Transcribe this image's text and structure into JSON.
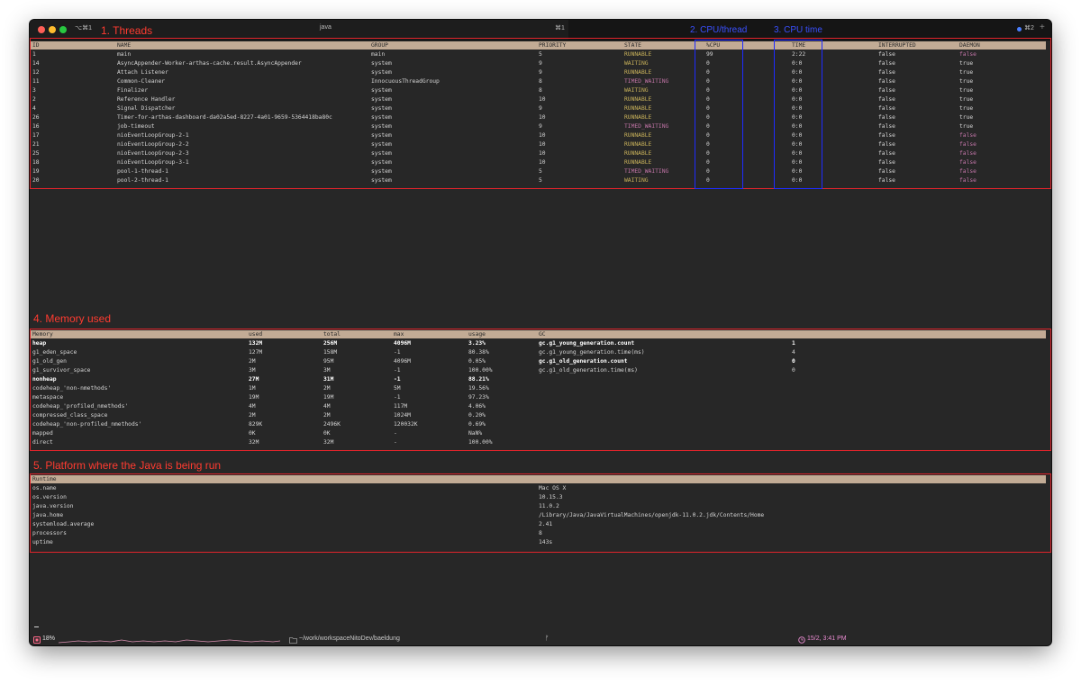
{
  "window": {
    "shortcut_left": "⌥⌘1",
    "tab_title": "java",
    "tab_shortcut": "⌘1",
    "shortcut_right": "⌘2",
    "plus": "+"
  },
  "annotations": {
    "threads": "1. Threads",
    "cpu_thread": "2. CPU/thread",
    "cpu_time": "3. CPU time",
    "memory": "4. Memory used",
    "platform": "5. Platform where the Java is being run"
  },
  "colors": {
    "annotation_red": "#ff3b30",
    "annotation_blue": "#3a50ff",
    "header_bar": "#c2ab95",
    "state_yellow": "#c9b25a",
    "state_magenta": "#c174a6"
  },
  "threads": {
    "headers": {
      "id": "ID",
      "name": "NAME",
      "group": "GROUP",
      "priority": "PRIORITY",
      "state": "STATE",
      "cpu": "%CPU",
      "time": "TIME",
      "interrupted": "INTERRUPTED",
      "daemon": "DAEMON"
    },
    "rows": [
      {
        "id": "1",
        "name": "main",
        "group": "main",
        "priority": "5",
        "state": "RUNNABLE",
        "state_color": "yellow",
        "cpu": "99",
        "time": "2:22",
        "interrupted": "false",
        "daemon": "false",
        "daemon_color": "magenta"
      },
      {
        "id": "14",
        "name": "AsyncAppender-Worker-arthas-cache.result.AsyncAppender",
        "group": "system",
        "priority": "9",
        "state": "WAITING",
        "state_color": "yellow",
        "cpu": "0",
        "time": "0:0",
        "interrupted": "false",
        "daemon": "true",
        "daemon_color": "plain"
      },
      {
        "id": "12",
        "name": "Attach Listener",
        "group": "system",
        "priority": "9",
        "state": "RUNNABLE",
        "state_color": "yellow",
        "cpu": "0",
        "time": "0:0",
        "interrupted": "false",
        "daemon": "true",
        "daemon_color": "plain"
      },
      {
        "id": "11",
        "name": "Common-Cleaner",
        "group": "InnocuousThreadGroup",
        "priority": "8",
        "state": "TIMED_WAITING",
        "state_color": "magenta",
        "cpu": "0",
        "time": "0:0",
        "interrupted": "false",
        "daemon": "true",
        "daemon_color": "plain"
      },
      {
        "id": "3",
        "name": "Finalizer",
        "group": "system",
        "priority": "8",
        "state": "WAITING",
        "state_color": "yellow",
        "cpu": "0",
        "time": "0:0",
        "interrupted": "false",
        "daemon": "true",
        "daemon_color": "plain"
      },
      {
        "id": "2",
        "name": "Reference Handler",
        "group": "system",
        "priority": "10",
        "state": "RUNNABLE",
        "state_color": "yellow",
        "cpu": "0",
        "time": "0:0",
        "interrupted": "false",
        "daemon": "true",
        "daemon_color": "plain"
      },
      {
        "id": "4",
        "name": "Signal Dispatcher",
        "group": "system",
        "priority": "9",
        "state": "RUNNABLE",
        "state_color": "yellow",
        "cpu": "0",
        "time": "0:0",
        "interrupted": "false",
        "daemon": "true",
        "daemon_color": "plain"
      },
      {
        "id": "26",
        "name": "Timer-for-arthas-dashboard-da02a5ed-8227-4a01-9659-5364418ba80c",
        "group": "system",
        "priority": "10",
        "state": "RUNNABLE",
        "state_color": "yellow",
        "cpu": "0",
        "time": "0:0",
        "interrupted": "false",
        "daemon": "true",
        "daemon_color": "plain"
      },
      {
        "id": "16",
        "name": "job-timeout",
        "group": "system",
        "priority": "9",
        "state": "TIMED_WAITING",
        "state_color": "magenta",
        "cpu": "0",
        "time": "0:0",
        "interrupted": "false",
        "daemon": "true",
        "daemon_color": "plain"
      },
      {
        "id": "17",
        "name": "nioEventLoopGroup-2-1",
        "group": "system",
        "priority": "10",
        "state": "RUNNABLE",
        "state_color": "yellow",
        "cpu": "0",
        "time": "0:0",
        "interrupted": "false",
        "daemon": "false",
        "daemon_color": "magenta"
      },
      {
        "id": "21",
        "name": "nioEventLoopGroup-2-2",
        "group": "system",
        "priority": "10",
        "state": "RUNNABLE",
        "state_color": "yellow",
        "cpu": "0",
        "time": "0:0",
        "interrupted": "false",
        "daemon": "false",
        "daemon_color": "magenta"
      },
      {
        "id": "25",
        "name": "nioEventLoopGroup-2-3",
        "group": "system",
        "priority": "10",
        "state": "RUNNABLE",
        "state_color": "yellow",
        "cpu": "0",
        "time": "0:0",
        "interrupted": "false",
        "daemon": "false",
        "daemon_color": "magenta"
      },
      {
        "id": "18",
        "name": "nioEventLoopGroup-3-1",
        "group": "system",
        "priority": "10",
        "state": "RUNNABLE",
        "state_color": "yellow",
        "cpu": "0",
        "time": "0:0",
        "interrupted": "false",
        "daemon": "false",
        "daemon_color": "magenta"
      },
      {
        "id": "19",
        "name": "pool-1-thread-1",
        "group": "system",
        "priority": "5",
        "state": "TIMED_WAITING",
        "state_color": "magenta",
        "cpu": "0",
        "time": "0:0",
        "interrupted": "false",
        "daemon": "false",
        "daemon_color": "magenta"
      },
      {
        "id": "20",
        "name": "pool-2-thread-1",
        "group": "system",
        "priority": "5",
        "state": "WAITING",
        "state_color": "yellow",
        "cpu": "0",
        "time": "0:0",
        "interrupted": "false",
        "daemon": "false",
        "daemon_color": "magenta"
      }
    ]
  },
  "memory": {
    "headers": {
      "name": "Memory",
      "used": "used",
      "total": "total",
      "max": "max",
      "usage": "usage",
      "gc": "GC"
    },
    "rows": [
      {
        "name": "heap",
        "used": "132M",
        "total": "256M",
        "max": "4096M",
        "usage": "3.23%",
        "bold": true
      },
      {
        "name": "g1_eden_space",
        "used": "127M",
        "total": "158M",
        "max": "-1",
        "usage": "80.38%",
        "bold": false
      },
      {
        "name": "g1_old_gen",
        "used": "2M",
        "total": "95M",
        "max": "4096M",
        "usage": "0.05%",
        "bold": false
      },
      {
        "name": "g1_survivor_space",
        "used": "3M",
        "total": "3M",
        "max": "-1",
        "usage": "100.00%",
        "bold": false
      },
      {
        "name": "nonheap",
        "used": "27M",
        "total": "31M",
        "max": "-1",
        "usage": "88.21%",
        "bold": true
      },
      {
        "name": "codeheap_'non-nmethods'",
        "used": "1M",
        "total": "2M",
        "max": "5M",
        "usage": "19.56%",
        "bold": false
      },
      {
        "name": "metaspace",
        "used": "19M",
        "total": "19M",
        "max": "-1",
        "usage": "97.23%",
        "bold": false
      },
      {
        "name": "codeheap_'profiled_nmethods'",
        "used": "4M",
        "total": "4M",
        "max": "117M",
        "usage": "4.06%",
        "bold": false
      },
      {
        "name": "compressed_class_space",
        "used": "2M",
        "total": "2M",
        "max": "1024M",
        "usage": "0.20%",
        "bold": false
      },
      {
        "name": "codeheap_'non-profiled_nmethods'",
        "used": "829K",
        "total": "2496K",
        "max": "120032K",
        "usage": "0.69%",
        "bold": false
      },
      {
        "name": "mapped",
        "used": "0K",
        "total": "0K",
        "max": "-",
        "usage": "NaN%",
        "bold": false
      },
      {
        "name": "direct",
        "used": "32M",
        "total": "32M",
        "max": "-",
        "usage": "100.00%",
        "bold": false
      }
    ],
    "gc": [
      {
        "name": "gc.g1_young_generation.count",
        "value": "1",
        "bold": true
      },
      {
        "name": "gc.g1_young_generation.time(ms)",
        "value": "4",
        "bold": false
      },
      {
        "name": "gc.g1_old_generation.count",
        "value": "0",
        "bold": true
      },
      {
        "name": "gc.g1_old_generation.time(ms)",
        "value": "0",
        "bold": false
      }
    ]
  },
  "runtime": {
    "header": "Runtime",
    "rows": [
      {
        "key": "os.name",
        "value": "Mac OS X"
      },
      {
        "key": "os.version",
        "value": "10.15.3"
      },
      {
        "key": "java.version",
        "value": "11.0.2"
      },
      {
        "key": "java.home",
        "value": "/Library/Java/JavaVirtualMachines/openjdk-11.0.2.jdk/Contents/Home"
      },
      {
        "key": "systemload.average",
        "value": "2.41"
      },
      {
        "key": "processors",
        "value": "8"
      },
      {
        "key": "uptime",
        "value": "143s"
      }
    ]
  },
  "statusbar": {
    "cpu": "18%",
    "path": "~/work/workspaceNitoDev/baeldung",
    "branch": "ᚠ",
    "datetime": "15/2, 3:41 PM",
    "cpu_icon": "cpu-icon",
    "folder_icon": "folder-icon",
    "clock_icon": "clock-icon"
  }
}
